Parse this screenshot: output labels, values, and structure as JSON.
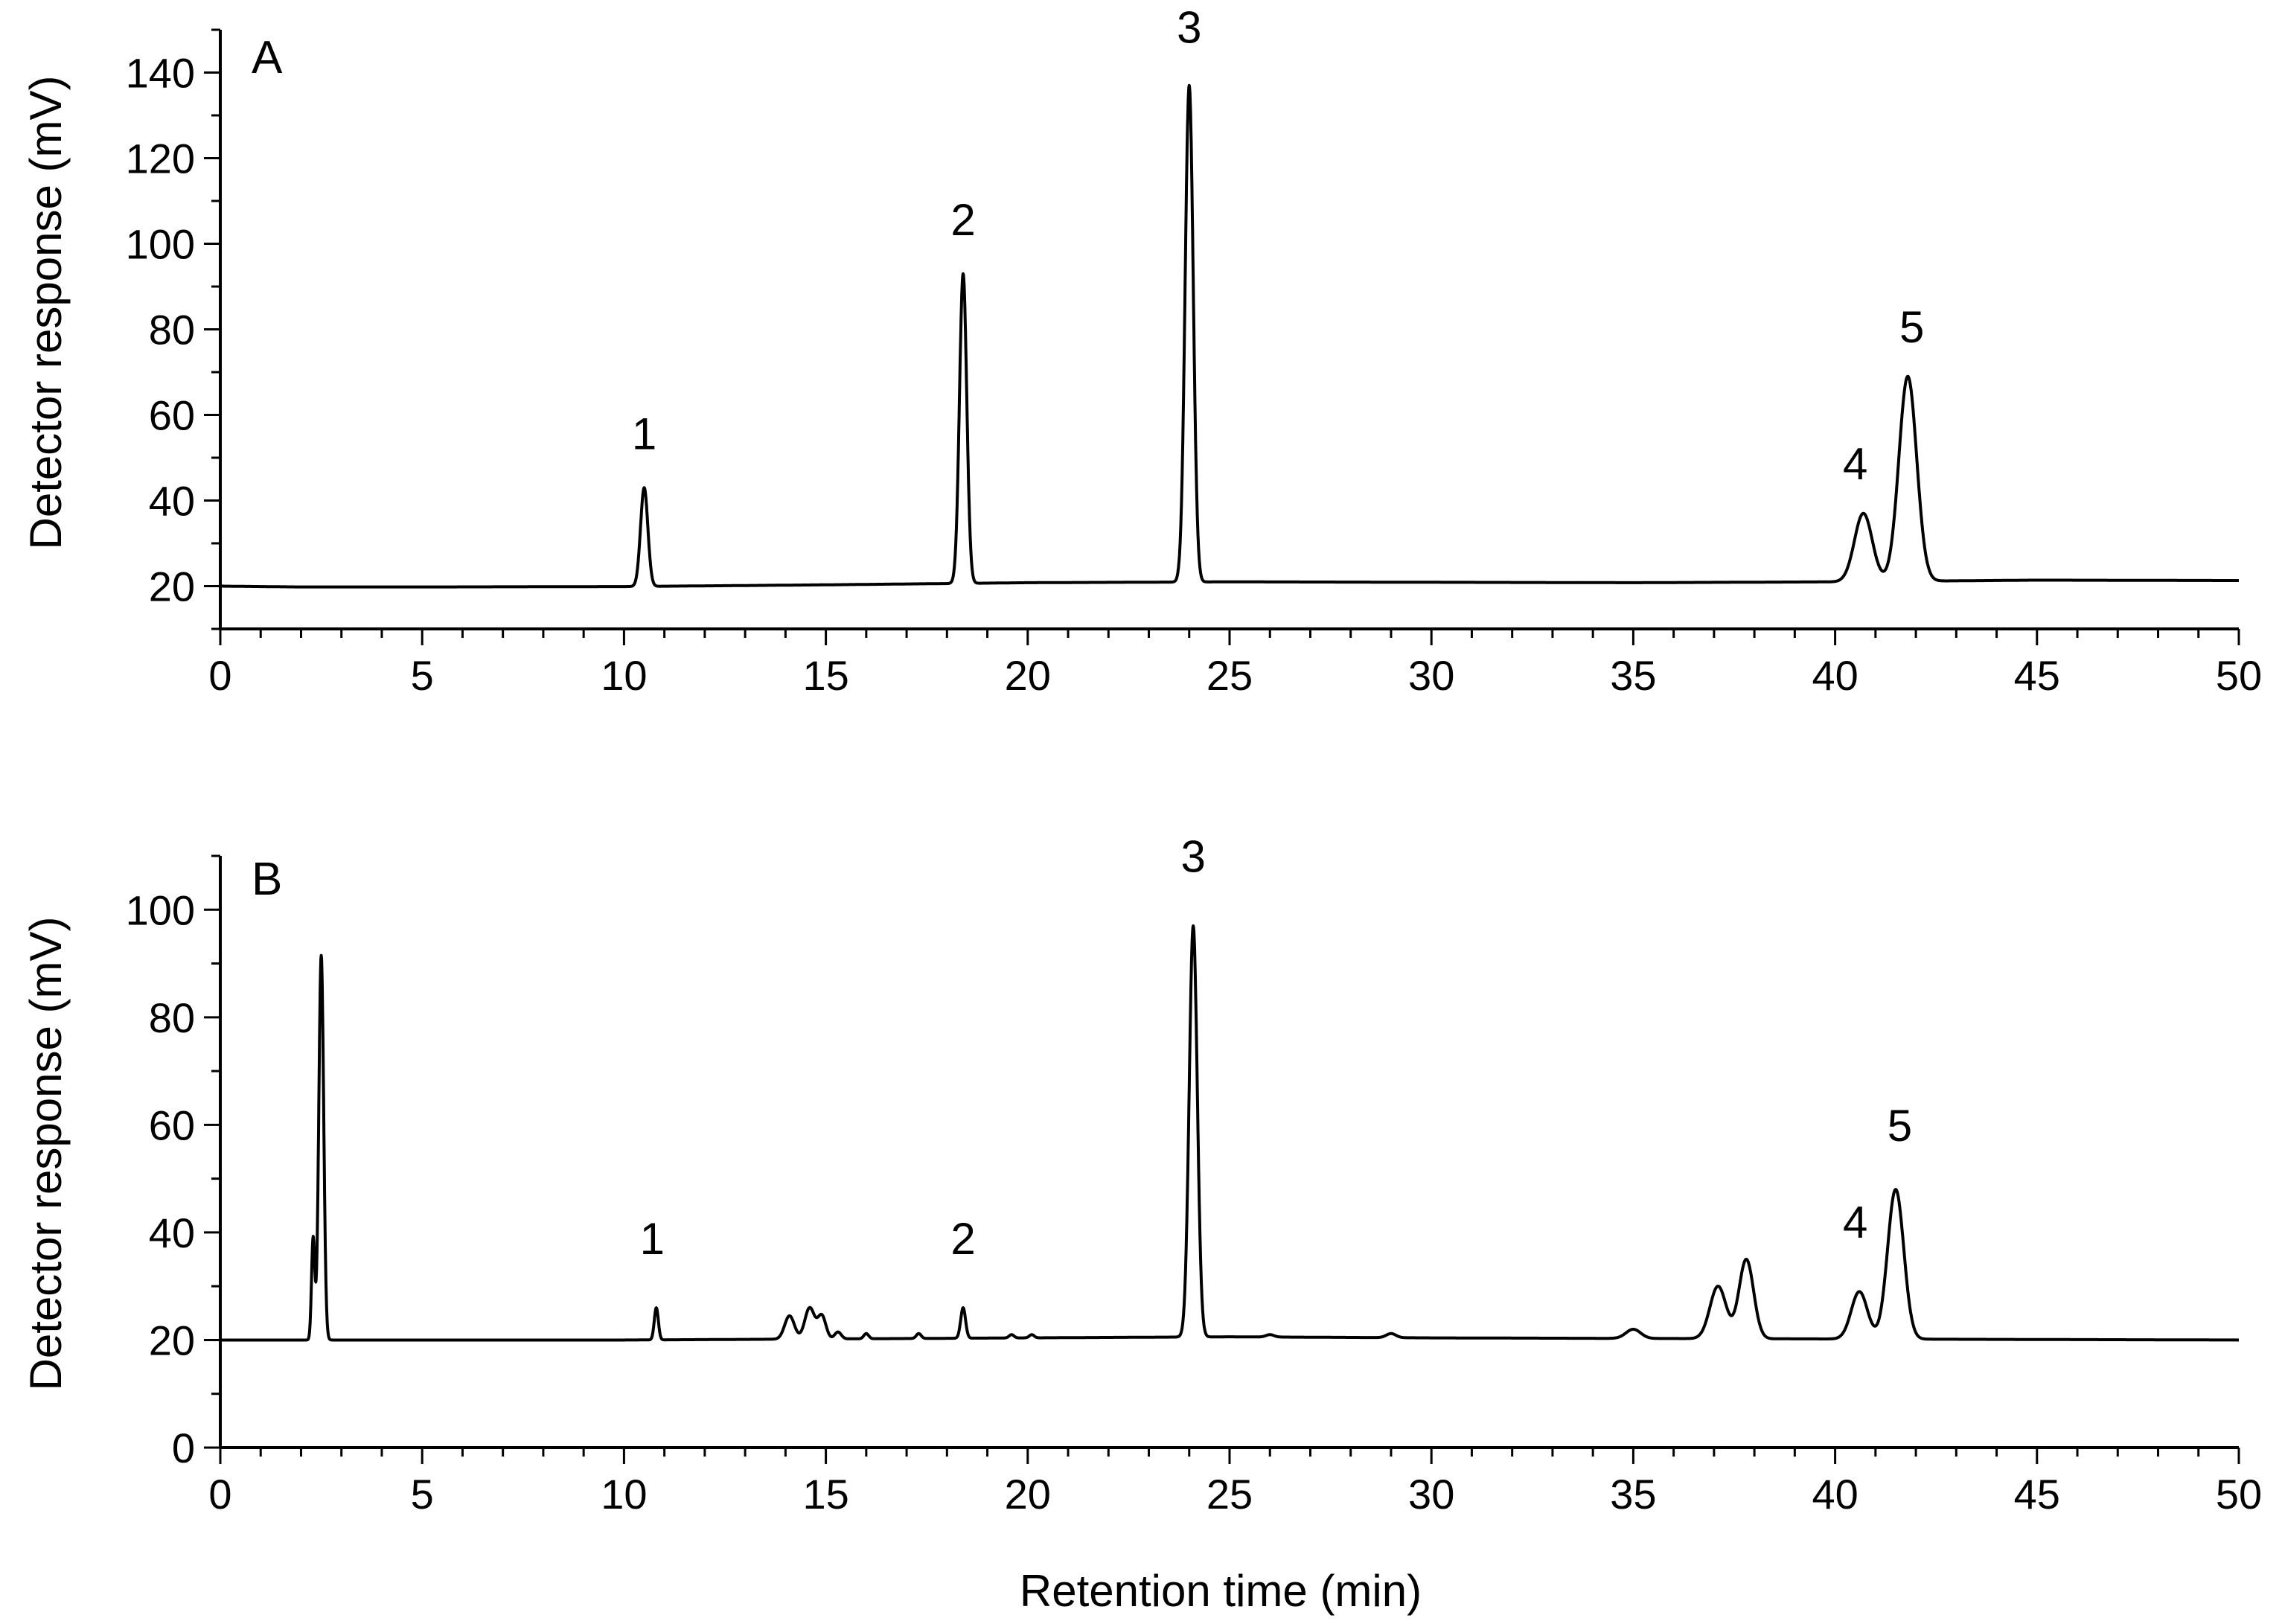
{
  "chart_data": [
    {
      "type": "line",
      "panel_label": "A",
      "xlabel": "",
      "ylabel": "Detector response (mV)",
      "xlim": [
        0,
        50
      ],
      "ylim": [
        10,
        150
      ],
      "x_ticks": [
        0,
        5,
        10,
        15,
        20,
        25,
        30,
        35,
        40,
        45,
        50
      ],
      "y_ticks": [
        20,
        40,
        60,
        80,
        100,
        120,
        140
      ],
      "grid": false,
      "baseline": [
        [
          0,
          20.0
        ],
        [
          2,
          19.8
        ],
        [
          5,
          19.8
        ],
        [
          10,
          19.9
        ],
        [
          15,
          20.3
        ],
        [
          20,
          20.8
        ],
        [
          25,
          21.0
        ],
        [
          30,
          20.9
        ],
        [
          35,
          20.8
        ],
        [
          40,
          21.0
        ],
        [
          45,
          21.4
        ],
        [
          50,
          21.3
        ]
      ],
      "peaks": [
        {
          "label": "1",
          "x": 10.5,
          "y": 43,
          "width": 0.09
        },
        {
          "label": "2",
          "x": 18.4,
          "y": 93,
          "width": 0.09
        },
        {
          "label": "3",
          "x": 24.0,
          "y": 137,
          "width": 0.1
        },
        {
          "label": "4",
          "x": 40.7,
          "y": 37,
          "width": 0.22
        },
        {
          "label": "5",
          "x": 41.8,
          "y": 69,
          "width": 0.22
        }
      ],
      "peak_labels": [
        {
          "text": "1",
          "x": 10.5,
          "y": 52
        },
        {
          "text": "2",
          "x": 18.4,
          "y": 102
        },
        {
          "text": "3",
          "x": 24.0,
          "y": 147
        },
        {
          "text": "4",
          "x": 40.5,
          "y": 45
        },
        {
          "text": "5",
          "x": 41.9,
          "y": 77
        }
      ]
    },
    {
      "type": "line",
      "panel_label": "B",
      "xlabel": "Retention time (min)",
      "ylabel": "Detector response (mV)",
      "xlim": [
        0,
        50
      ],
      "ylim": [
        0,
        110
      ],
      "x_ticks": [
        0,
        5,
        10,
        15,
        20,
        25,
        30,
        35,
        40,
        45,
        50
      ],
      "y_ticks": [
        0,
        20,
        40,
        60,
        80,
        100
      ],
      "grid": false,
      "baseline": [
        [
          0,
          20.0
        ],
        [
          5,
          20.0
        ],
        [
          10,
          20.0
        ],
        [
          15,
          20.2
        ],
        [
          20,
          20.4
        ],
        [
          25,
          20.6
        ],
        [
          30,
          20.4
        ],
        [
          35,
          20.3
        ],
        [
          40,
          20.2
        ],
        [
          45,
          20.1
        ],
        [
          50,
          20.0
        ]
      ],
      "peaks": [
        {
          "label": "",
          "x": 2.3,
          "y": 39,
          "width": 0.04
        },
        {
          "label": "",
          "x": 2.5,
          "y": 91.5,
          "width": 0.06
        },
        {
          "label": "1",
          "x": 10.8,
          "y": 26,
          "width": 0.05
        },
        {
          "label": "",
          "x": 14.1,
          "y": 24.5,
          "width": 0.12
        },
        {
          "label": "",
          "x": 14.6,
          "y": 26,
          "width": 0.12
        },
        {
          "label": "",
          "x": 14.9,
          "y": 24.5,
          "width": 0.1
        },
        {
          "label": "",
          "x": 15.3,
          "y": 21.5,
          "width": 0.08
        },
        {
          "label": "",
          "x": 16.0,
          "y": 21.2,
          "width": 0.06
        },
        {
          "label": "",
          "x": 17.3,
          "y": 21.2,
          "width": 0.06
        },
        {
          "label": "2",
          "x": 18.4,
          "y": 26,
          "width": 0.06
        },
        {
          "label": "",
          "x": 19.6,
          "y": 21.0,
          "width": 0.06
        },
        {
          "label": "",
          "x": 20.1,
          "y": 21.0,
          "width": 0.06
        },
        {
          "label": "3",
          "x": 24.1,
          "y": 97,
          "width": 0.1
        },
        {
          "label": "",
          "x": 26.0,
          "y": 21.0,
          "width": 0.1
        },
        {
          "label": "",
          "x": 29.0,
          "y": 21.2,
          "width": 0.12
        },
        {
          "label": "",
          "x": 35.0,
          "y": 22.0,
          "width": 0.18
        },
        {
          "label": "",
          "x": 37.1,
          "y": 30,
          "width": 0.2
        },
        {
          "label": "",
          "x": 37.8,
          "y": 35,
          "width": 0.18
        },
        {
          "label": "4",
          "x": 40.6,
          "y": 29,
          "width": 0.2
        },
        {
          "label": "5",
          "x": 41.5,
          "y": 48,
          "width": 0.2
        }
      ],
      "peak_labels": [
        {
          "text": "1",
          "x": 10.7,
          "y": 36
        },
        {
          "text": "2",
          "x": 18.4,
          "y": 36
        },
        {
          "text": "3",
          "x": 24.1,
          "y": 107
        },
        {
          "text": "4",
          "x": 40.5,
          "y": 39
        },
        {
          "text": "5",
          "x": 41.6,
          "y": 57
        }
      ]
    }
  ]
}
